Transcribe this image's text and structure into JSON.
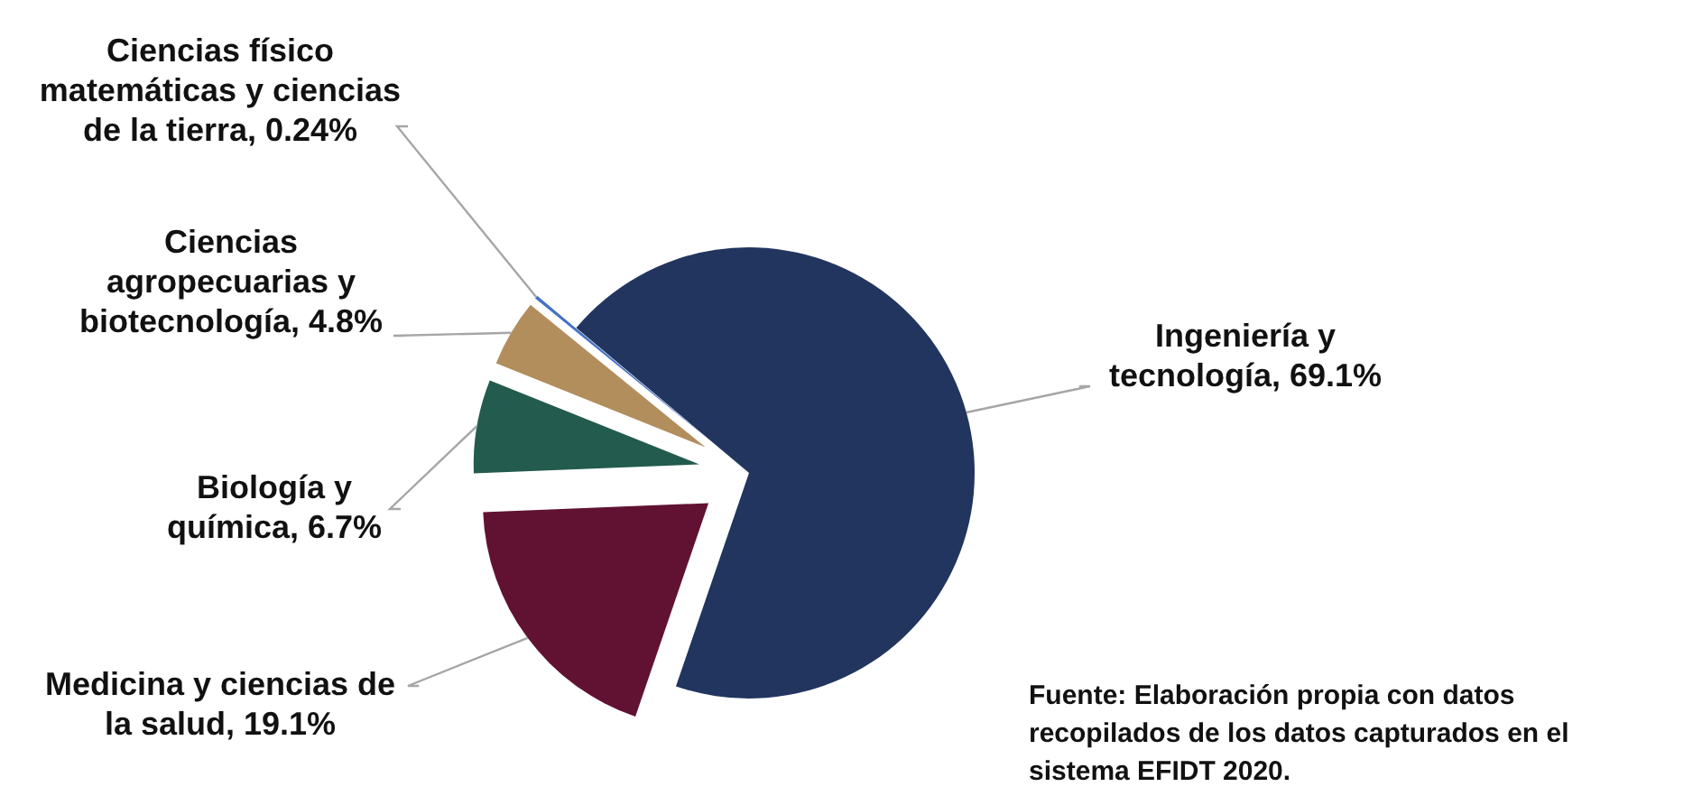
{
  "chart_data": {
    "type": "pie",
    "categories": [
      "Ingeniería y tecnología",
      "Medicina y ciencias de la salud",
      "Biología y química",
      "Ciencias agropecuarias y biotecnología",
      "Ciencias físico matemáticas y ciencias de la tierra"
    ],
    "values": [
      69.1,
      19.1,
      6.7,
      4.8,
      0.24
    ],
    "value_labels": [
      "69.1%",
      "19.1%",
      "6.7%",
      "4.8%",
      "0.24%"
    ],
    "colors": [
      "#22355f",
      "#611232",
      "#235b4e",
      "#b38e5d",
      "#4472c4"
    ],
    "annotations": [
      "Fuente: Elaboración propia con datos recopilados de los datos capturados en el sistema EFIDT 2020."
    ]
  }
}
